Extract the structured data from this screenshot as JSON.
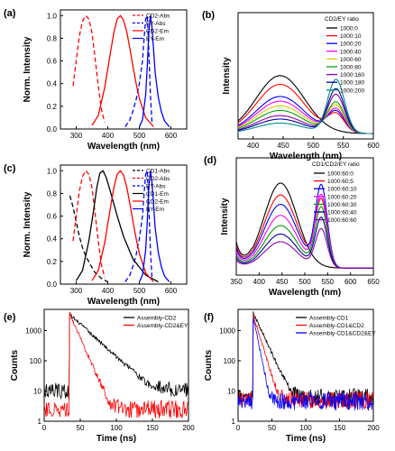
{
  "chart_data": [
    {
      "panel": "(a)",
      "type": "line",
      "xlabel": "Wavelength (nm)",
      "ylabel": "Norm. Intensity",
      "xlim": [
        250,
        650
      ],
      "ylim": [
        0,
        1.05
      ],
      "xticks": [
        300,
        400,
        500,
        600
      ],
      "yticks": [
        0.0,
        0.2,
        0.4,
        0.6,
        0.8,
        1.0
      ],
      "legend": {
        "placement": "top-right"
      },
      "series": [
        {
          "name": "CD2-Abs",
          "color": "#ff0000",
          "dash": true,
          "x": [
            290,
            300,
            310,
            320,
            330,
            340,
            350,
            360,
            370,
            380,
            390
          ],
          "y": [
            0.38,
            0.6,
            0.82,
            0.95,
            1.0,
            0.97,
            0.85,
            0.62,
            0.38,
            0.17,
            0.06
          ]
        },
        {
          "name": "EY-Abs",
          "color": "#0000ff",
          "dash": true,
          "x": [
            455,
            470,
            480,
            490,
            500,
            510,
            515,
            520,
            525,
            530,
            535,
            540
          ],
          "y": [
            0.02,
            0.08,
            0.16,
            0.26,
            0.4,
            0.6,
            0.8,
            0.97,
            1.0,
            0.7,
            0.3,
            0.06
          ]
        },
        {
          "name": "CD2-Em",
          "color": "#ff0000",
          "dash": false,
          "x": [
            350,
            370,
            390,
            410,
            420,
            430,
            440,
            450,
            460,
            470,
            480,
            490,
            500,
            520,
            545
          ],
          "y": [
            0.03,
            0.12,
            0.36,
            0.7,
            0.86,
            0.97,
            1.0,
            0.96,
            0.86,
            0.71,
            0.55,
            0.4,
            0.27,
            0.1,
            0.02
          ]
        },
        {
          "name": "EY-Em",
          "color": "#0000ff",
          "dash": false,
          "x": [
            500,
            510,
            520,
            525,
            530,
            535,
            540,
            545,
            550,
            560,
            570,
            580,
            595
          ],
          "y": [
            0.02,
            0.08,
            0.3,
            0.55,
            0.85,
            1.0,
            0.9,
            0.7,
            0.5,
            0.28,
            0.15,
            0.07,
            0.02
          ]
        }
      ]
    },
    {
      "panel": "(b)",
      "type": "line",
      "xlabel": "Wavelength (nm)",
      "ylabel": "Intensity",
      "xlim": [
        375,
        600
      ],
      "xticks": [
        400,
        450,
        500,
        550,
        600
      ],
      "legend": {
        "placement": "top-right",
        "title": "CD2/EY ratio"
      },
      "series": [
        {
          "name": "1000:0",
          "color": "#000000",
          "peak": [
            1.0,
            0.0
          ]
        },
        {
          "name": "1000:10",
          "color": "#ff0000",
          "peak": [
            0.85,
            0.55
          ]
        },
        {
          "name": "1000:20",
          "color": "#0000ff",
          "peak": [
            0.64,
            0.65
          ]
        },
        {
          "name": "1000:40",
          "color": "#ff00ff",
          "peak": [
            0.56,
            0.73
          ]
        },
        {
          "name": "1000:60",
          "color": "#e6c800",
          "peak": [
            0.48,
            0.85
          ]
        },
        {
          "name": "1000:80",
          "color": "#00a000",
          "peak": [
            0.4,
            0.95
          ]
        },
        {
          "name": "1000:160",
          "color": "#8b00a8",
          "peak": [
            0.31,
            1.2
          ]
        },
        {
          "name": "1000:180",
          "color": "#00009a",
          "peak": [
            0.25,
            1.38
          ]
        },
        {
          "name": "1000:200",
          "color": "#008b8b",
          "peak": [
            0.18,
            1.68
          ]
        }
      ]
    },
    {
      "panel": "(c)",
      "type": "line",
      "xlabel": "Wavelength (nm)",
      "ylabel": "Norm. Intensity",
      "xlim": [
        250,
        650
      ],
      "ylim": [
        0,
        1.05
      ],
      "xticks": [
        300,
        400,
        500,
        600
      ],
      "yticks": [
        0.0,
        0.2,
        0.4,
        0.6,
        0.8,
        1.0
      ],
      "legend": {
        "placement": "top-right"
      },
      "series": [
        {
          "name": "CD1-Abs",
          "color": "#000000",
          "dash": true,
          "x": [
            280,
            290,
            300,
            310,
            320,
            330,
            345,
            360,
            380,
            400
          ],
          "y": [
            0.78,
            0.68,
            0.55,
            0.42,
            0.32,
            0.25,
            0.17,
            0.1,
            0.05,
            0.02
          ]
        },
        {
          "name": "CD2-Abs",
          "color": "#ff0000",
          "dash": true,
          "x": [
            290,
            300,
            310,
            320,
            330,
            340,
            350,
            360,
            370,
            380,
            390
          ],
          "y": [
            0.38,
            0.6,
            0.82,
            0.95,
            1.0,
            0.97,
            0.85,
            0.62,
            0.38,
            0.17,
            0.06
          ]
        },
        {
          "name": "EY-Abs",
          "color": "#0000ff",
          "dash": true,
          "x": [
            455,
            470,
            480,
            490,
            500,
            510,
            515,
            520,
            525,
            530,
            535,
            540
          ],
          "y": [
            0.02,
            0.08,
            0.16,
            0.26,
            0.4,
            0.6,
            0.8,
            0.97,
            1.0,
            0.7,
            0.3,
            0.06
          ]
        },
        {
          "name": "CD1-Em",
          "color": "#000000",
          "dash": false,
          "x": [
            300,
            320,
            340,
            355,
            365,
            375,
            385,
            395,
            410,
            430,
            450,
            480,
            520,
            560
          ],
          "y": [
            0.03,
            0.12,
            0.38,
            0.65,
            0.85,
            0.98,
            1.0,
            0.94,
            0.8,
            0.6,
            0.42,
            0.22,
            0.08,
            0.02
          ]
        },
        {
          "name": "CD2-Em",
          "color": "#ff0000",
          "dash": false,
          "x": [
            350,
            370,
            390,
            410,
            420,
            430,
            440,
            450,
            460,
            470,
            480,
            490,
            500,
            520,
            545
          ],
          "y": [
            0.03,
            0.12,
            0.36,
            0.7,
            0.86,
            0.97,
            1.0,
            0.96,
            0.86,
            0.71,
            0.55,
            0.4,
            0.27,
            0.1,
            0.02
          ]
        },
        {
          "name": "EY-Em",
          "color": "#0000ff",
          "dash": false,
          "x": [
            500,
            510,
            520,
            525,
            530,
            535,
            540,
            545,
            550,
            560,
            570,
            580,
            595
          ],
          "y": [
            0.02,
            0.08,
            0.3,
            0.55,
            0.85,
            1.0,
            0.9,
            0.7,
            0.5,
            0.28,
            0.15,
            0.07,
            0.02
          ]
        }
      ]
    },
    {
      "panel": "(d)",
      "type": "line",
      "xlabel": "Wavelength (nm)",
      "ylabel": "Intensity",
      "xlim": [
        350,
        650
      ],
      "xticks": [
        350,
        400,
        450,
        500,
        550,
        600,
        650
      ],
      "legend": {
        "placement": "top-right",
        "title": "CD1/CD2/EY ratio"
      },
      "series": [
        {
          "name": "1000:60:0",
          "color": "#000000",
          "peak": [
            1.0,
            0.0
          ]
        },
        {
          "name": "1000:60:5",
          "color": "#ff0000",
          "peak": [
            0.86,
            0.78
          ]
        },
        {
          "name": "1000:60:10",
          "color": "#0000ff",
          "peak": [
            0.75,
            0.95
          ]
        },
        {
          "name": "1000:60:20",
          "color": "#ff00ff",
          "peak": [
            0.62,
            0.84
          ]
        },
        {
          "name": "1000:60:30",
          "color": "#00a000",
          "peak": [
            0.5,
            0.7
          ]
        },
        {
          "name": "1000:60:40",
          "color": "#00009a",
          "peak": [
            0.4,
            0.58
          ]
        },
        {
          "name": "1000:60:60",
          "color": "#8b00a8",
          "peak": [
            0.31,
            0.45
          ]
        }
      ]
    },
    {
      "panel": "(e)",
      "type": "line",
      "xlabel": "Time (ns)",
      "ylabel": "Counts",
      "xlim": [
        0,
        200
      ],
      "ylim": [
        1,
        5000
      ],
      "yscale": "log",
      "xticks": [
        0,
        50,
        100,
        150,
        200
      ],
      "yticks": [
        1,
        10,
        100,
        1000
      ],
      "legend": {
        "placement": "top-right"
      },
      "series": [
        {
          "name": "Assembly-CD2",
          "color": "#000000",
          "tau": 20,
          "bg": 10,
          "peak": 3500
        },
        {
          "name": "Assembly-CD2&EY",
          "color": "#ff0000",
          "tau": 8,
          "bg": 2.5,
          "peak": 3800
        }
      ]
    },
    {
      "panel": "(f)",
      "type": "line",
      "xlabel": "Time (ns)",
      "ylabel": "Counts",
      "xlim": [
        0,
        200
      ],
      "ylim": [
        1,
        5000
      ],
      "yscale": "log",
      "xticks": [
        0,
        50,
        100,
        150,
        200
      ],
      "yticks": [
        1,
        10,
        100,
        1000
      ],
      "legend": {
        "placement": "top-right"
      },
      "series": [
        {
          "name": "Assembly-CD1",
          "color": "#000000",
          "tau": 9,
          "bg": 6,
          "peak": 4000
        },
        {
          "name": "Assembly-CD1&CD2",
          "color": "#ff0000",
          "tau": 6,
          "bg": 5,
          "peak": 3500
        },
        {
          "name": "Assembly-CD1&CD2&EY",
          "color": "#0000ff",
          "tau": 4,
          "bg": 4.5,
          "peak": 3000
        }
      ]
    }
  ]
}
